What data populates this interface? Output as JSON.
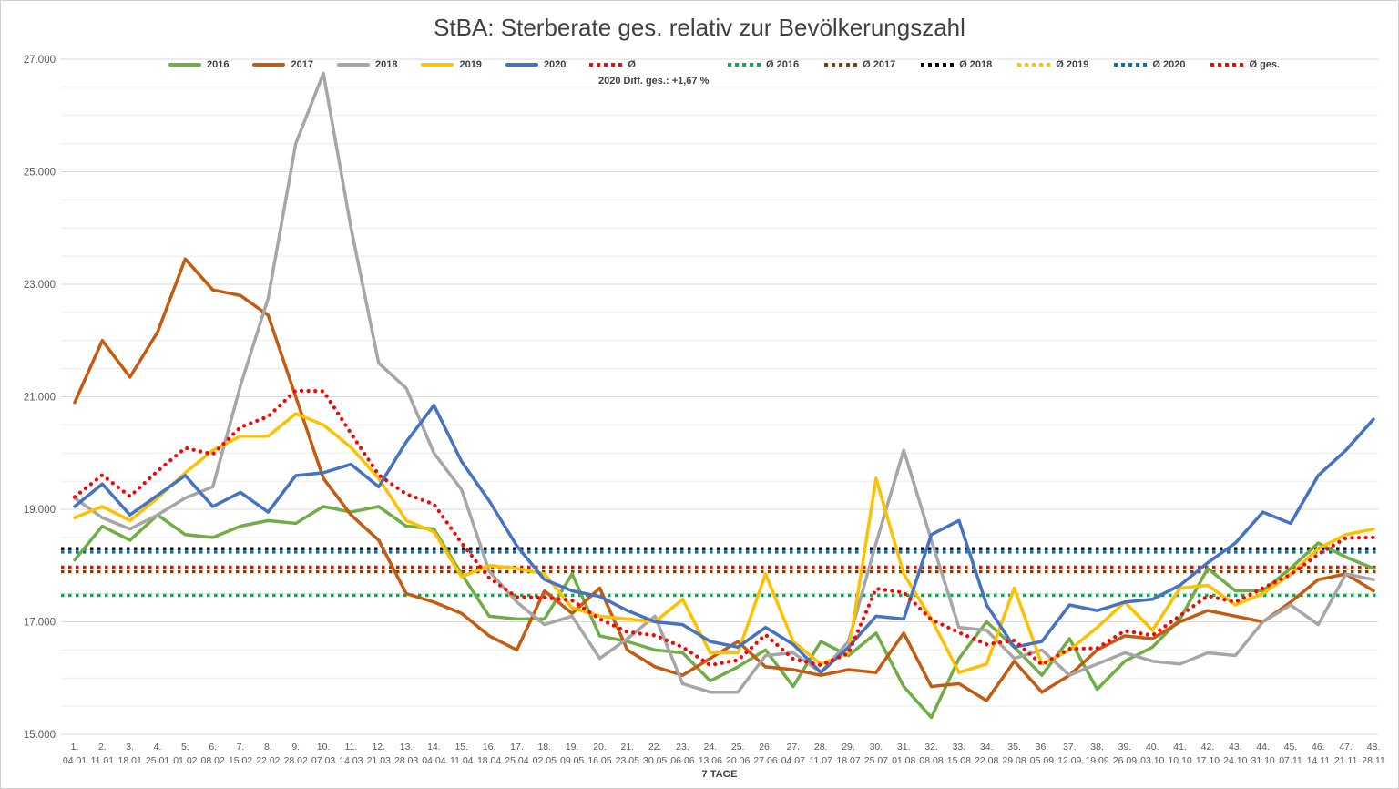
{
  "chart_data": {
    "type": "line",
    "title": "StBA: Sterberate ges. relativ zur Bevölkerungszahl",
    "xlabel": "7 TAGE",
    "ylabel": "",
    "ylim": [
      15000,
      27000
    ],
    "y_tick_step": 2000,
    "y_minor_step": 500,
    "y_tick_labels": [
      "15.000",
      "17.000",
      "19.000",
      "21.000",
      "23.000",
      "25.000",
      "27.000"
    ],
    "grid": true,
    "legend_position": "top",
    "legend_note": "2020 Diff. ges.: +1,67 %",
    "x_week_labels": [
      "1.",
      "2.",
      "3.",
      "4.",
      "5.",
      "6.",
      "7.",
      "8.",
      "9.",
      "10.",
      "11.",
      "12.",
      "13.",
      "14.",
      "15.",
      "16.",
      "17.",
      "18.",
      "19.",
      "20.",
      "21.",
      "22.",
      "23.",
      "24.",
      "25.",
      "26.",
      "27.",
      "28.",
      "29.",
      "30.",
      "31.",
      "32.",
      "33.",
      "34.",
      "35.",
      "36.",
      "37.",
      "38.",
      "39.",
      "40.",
      "41.",
      "42.",
      "43.",
      "44.",
      "45.",
      "46.",
      "47.",
      "48."
    ],
    "x_date_labels": [
      "04.01",
      "11.01",
      "18.01",
      "25.01",
      "01.02",
      "08.02",
      "15.02",
      "22.02",
      "28.02",
      "07.03",
      "14.03",
      "21.03",
      "28.03",
      "04.04",
      "11.04",
      "18.04",
      "25.04",
      "02.05",
      "09.05",
      "16.05",
      "23.05",
      "30.05",
      "06.06",
      "13.06",
      "20.06",
      "27.06",
      "04.07",
      "11.07",
      "18.07",
      "25.07",
      "01.08",
      "08.08",
      "15.08",
      "22.08",
      "29.08",
      "05.09",
      "12.09",
      "19.09",
      "26.09",
      "03.10",
      "10.10",
      "17.10",
      "24.10",
      "31.10",
      "07.11",
      "14.11",
      "21.11",
      "28.11"
    ],
    "series": [
      {
        "name": "2016",
        "color": "#70AD47",
        "style": "solid",
        "values": [
          18100,
          18700,
          18450,
          18900,
          18550,
          18500,
          18700,
          18800,
          18750,
          19050,
          18950,
          19050,
          18700,
          18650,
          17850,
          17100,
          17050,
          17050,
          17850,
          16750,
          16650,
          16500,
          16450,
          15950,
          16200,
          16500,
          15850,
          16650,
          16400,
          16800,
          15850,
          15300,
          16350,
          17000,
          16550,
          16050,
          16700,
          15800,
          16300,
          16550,
          17050,
          17950,
          17550,
          17550,
          17950,
          18400,
          18150,
          17950
        ]
      },
      {
        "name": "2017",
        "color": "#C55A11",
        "style": "solid",
        "values": [
          20900,
          22000,
          21350,
          22150,
          23450,
          22900,
          22800,
          22450,
          21000,
          19550,
          18900,
          18450,
          17500,
          17350,
          17150,
          16750,
          16500,
          17550,
          17150,
          17600,
          16500,
          16200,
          16050,
          16350,
          16650,
          16200,
          16150,
          16050,
          16150,
          16100,
          16800,
          15850,
          15900,
          15600,
          16300,
          15750,
          16050,
          16500,
          16750,
          16700,
          17000,
          17200,
          17100,
          17000,
          17350,
          17750,
          17850,
          17550
        ]
      },
      {
        "name": "2018",
        "color": "#A6A6A6",
        "style": "solid",
        "values": [
          19200,
          18850,
          18650,
          18900,
          19200,
          19400,
          21200,
          22750,
          25500,
          26750,
          24000,
          21600,
          21150,
          20000,
          19350,
          17900,
          17350,
          16950,
          17100,
          16350,
          16700,
          17100,
          15900,
          15750,
          15750,
          16400,
          16450,
          16100,
          16650,
          18400,
          20050,
          18450,
          16900,
          16850,
          16350,
          16500,
          16050,
          16250,
          16450,
          16300,
          16250,
          16450,
          16400,
          17000,
          17300,
          16950,
          17850,
          17750
        ]
      },
      {
        "name": "2019",
        "color": "#FFC000",
        "style": "solid",
        "values": [
          18850,
          19050,
          18800,
          19200,
          19650,
          20050,
          20300,
          20300,
          20700,
          20500,
          20100,
          19550,
          18800,
          18600,
          17800,
          18000,
          17950,
          17850,
          17250,
          17100,
          17050,
          17000,
          17400,
          16450,
          16450,
          17850,
          16650,
          16250,
          16450,
          19550,
          17850,
          17050,
          16100,
          16250,
          17600,
          16250,
          16500,
          16900,
          17350,
          16850,
          17600,
          17650,
          17300,
          17500,
          17850,
          18300,
          18550,
          18650
        ]
      },
      {
        "name": "2020",
        "color": "#4472C4",
        "style": "solid",
        "values": [
          19050,
          19450,
          18900,
          19250,
          19600,
          19050,
          19300,
          18950,
          19600,
          19650,
          19800,
          19400,
          20200,
          20850,
          19850,
          19150,
          18350,
          17750,
          17550,
          17450,
          17200,
          17000,
          16950,
          16650,
          16550,
          16900,
          16600,
          16100,
          16550,
          17100,
          17050,
          18550,
          18800,
          17300,
          16550,
          16650,
          17300,
          17200,
          17350,
          17400,
          17650,
          18050,
          18400,
          18950,
          18750,
          19600,
          20050,
          20600
        ]
      },
      {
        "name": "Ø",
        "color": "#FF0000",
        "style": "dotted",
        "values": [
          19220,
          19610,
          19230,
          19680,
          20090,
          19980,
          20460,
          20650,
          21110,
          21100,
          20350,
          19610,
          19270,
          19090,
          18400,
          17780,
          17440,
          17430,
          17380,
          17050,
          16820,
          16760,
          16550,
          16230,
          16320,
          16770,
          16340,
          16230,
          16440,
          17590,
          17520,
          17040,
          16810,
          16600,
          16670,
          16240,
          16520,
          16530,
          16840,
          16760,
          17110,
          17460,
          17350,
          17600,
          17840,
          18200,
          18490,
          18500
        ]
      }
    ],
    "averages": [
      {
        "name": "Ø 2016",
        "color": "#00B050",
        "value": 17470
      },
      {
        "name": "Ø 2017",
        "color": "#843C0C",
        "value": 17890
      },
      {
        "name": "Ø 2018",
        "color": "#000000",
        "value": 18300
      },
      {
        "name": "Ø 2019",
        "color": "#FFC000",
        "value": 17960
      },
      {
        "name": "Ø 2020",
        "color": "#0070C0",
        "value": 18240
      },
      {
        "name": "Ø ges.",
        "color": "#FF0000",
        "value": 17970
      }
    ]
  }
}
